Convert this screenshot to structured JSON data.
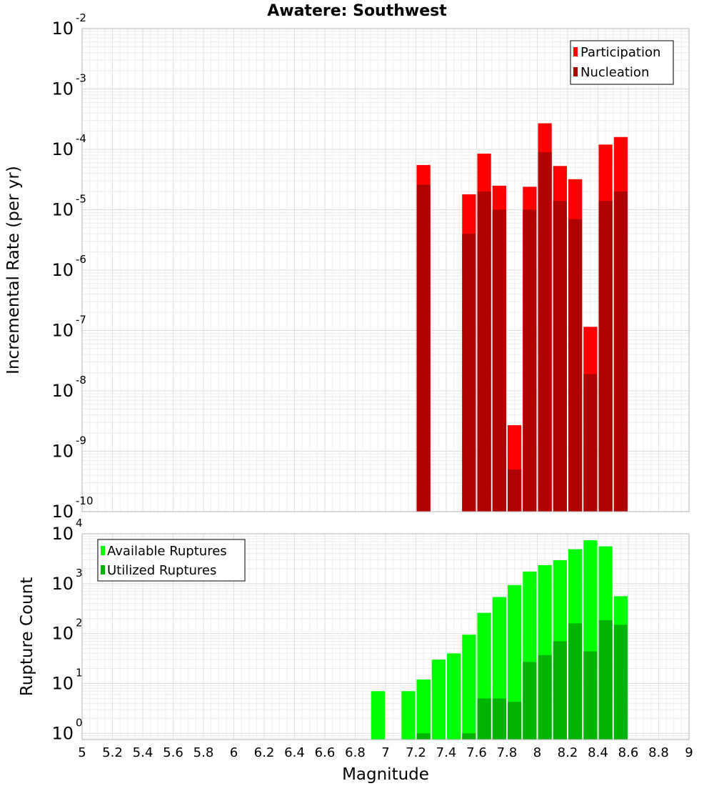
{
  "title": "Awatere: Southwest",
  "xlabel": "Magnitude",
  "x_range": [
    5,
    9
  ],
  "x_ticks": [
    "5",
    "5.2",
    "5.4",
    "5.6",
    "5.8",
    "6",
    "6.2",
    "6.4",
    "6.6",
    "6.8",
    "7",
    "7.2",
    "7.4",
    "7.6",
    "7.8",
    "8",
    "8.2",
    "8.4",
    "8.6",
    "8.8",
    "9"
  ],
  "colors": {
    "participation": "#ff0000",
    "nucleation": "#b00000",
    "available": "#00ff00",
    "utilized": "#00b400",
    "grid": "#e6e6e6",
    "frame": "#b3b3b3"
  },
  "chart_data": [
    {
      "type": "bar",
      "scale": "log",
      "title": "Awatere: Southwest",
      "ylabel": "Incremental Rate (per yr)",
      "xlabel": "",
      "ylim": [
        1e-10,
        0.01
      ],
      "y_tick_exponents": [
        "-10",
        "-9",
        "-8",
        "-7",
        "-6",
        "-5",
        "-4",
        "-3",
        "-2"
      ],
      "legend_position": "top-right",
      "x": [
        7.25,
        7.55,
        7.65,
        7.75,
        7.85,
        7.95,
        8.05,
        8.15,
        8.25,
        8.35,
        8.45,
        8.55
      ],
      "series": [
        {
          "name": "Participation",
          "values": [
            5.5e-05,
            1.8e-05,
            8.5e-05,
            2.5e-05,
            2.7e-09,
            2.4e-05,
            0.00027,
            5.3e-05,
            3.2e-05,
            1.15e-07,
            0.00012,
            0.00016
          ]
        },
        {
          "name": "Nucleation",
          "values": [
            2.6e-05,
            4e-06,
            2e-05,
            1e-05,
            5e-10,
            1e-05,
            9e-05,
            1.4e-05,
            7e-06,
            1.9e-08,
            1.4e-05,
            2e-05
          ]
        }
      ]
    },
    {
      "type": "bar",
      "scale": "log",
      "ylabel": "Rupture Count",
      "xlabel": "Magnitude",
      "ylim": [
        0.75,
        10000
      ],
      "y_tick_exponents": [
        "0",
        "1",
        "2",
        "3",
        "4"
      ],
      "legend_position": "top-left",
      "x": [
        6.95,
        7.15,
        7.25,
        7.35,
        7.45,
        7.55,
        7.65,
        7.75,
        7.85,
        7.95,
        8.05,
        8.15,
        8.25,
        8.35,
        8.45,
        8.55
      ],
      "series": [
        {
          "name": "Available Ruptures",
          "values": [
            7,
            7,
            12,
            30,
            40,
            95,
            260,
            540,
            940,
            1750,
            2350,
            2950,
            4900,
            7400,
            5600,
            560
          ]
        },
        {
          "name": "Utilized Ruptures",
          "values": [
            null,
            null,
            1,
            null,
            null,
            1,
            5,
            5,
            4.3,
            27,
            37,
            70,
            160,
            44,
            185,
            150
          ]
        }
      ]
    }
  ]
}
